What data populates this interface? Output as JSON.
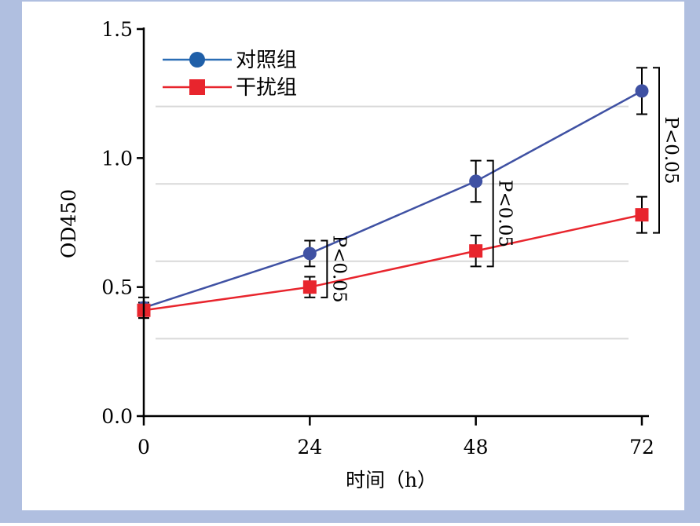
{
  "colors": {
    "frame": "#b0bfe0",
    "plot_background": "#ffffff",
    "grid": "#d9d9d9",
    "axis": "#000000",
    "control": "#3f51a3",
    "interference": "#e8252d",
    "control_legend_marker": "#1f5fa8",
    "control_legend_line": "#2a6db5"
  },
  "chart_data": {
    "type": "line",
    "title": "",
    "xlabel": "时间（h）",
    "ylabel": "OD450",
    "x": [
      0,
      24,
      48,
      72
    ],
    "xticks": [
      "0",
      "24",
      "48",
      "72"
    ],
    "xlim": [
      0,
      72
    ],
    "ylim": [
      0,
      1.5
    ],
    "yticks": [
      "0.0",
      "0.5",
      "1.0",
      "1.5"
    ],
    "grid": true,
    "legend_position": "top-left",
    "series": [
      {
        "name": "对照组",
        "marker": "circle",
        "color": "#3f51a3",
        "values": [
          0.42,
          0.63,
          0.91,
          1.26
        ],
        "error": [
          0.04,
          0.05,
          0.08,
          0.09
        ]
      },
      {
        "name": "干扰组",
        "marker": "square",
        "color": "#e8252d",
        "values": [
          0.41,
          0.5,
          0.64,
          0.78
        ],
        "error": [
          0.03,
          0.04,
          0.06,
          0.07
        ]
      }
    ],
    "annotations": [
      {
        "x": 24,
        "text": "P<0.05"
      },
      {
        "x": 48,
        "text": "P<0.05"
      },
      {
        "x": 72,
        "text": "P<0.05"
      }
    ]
  }
}
